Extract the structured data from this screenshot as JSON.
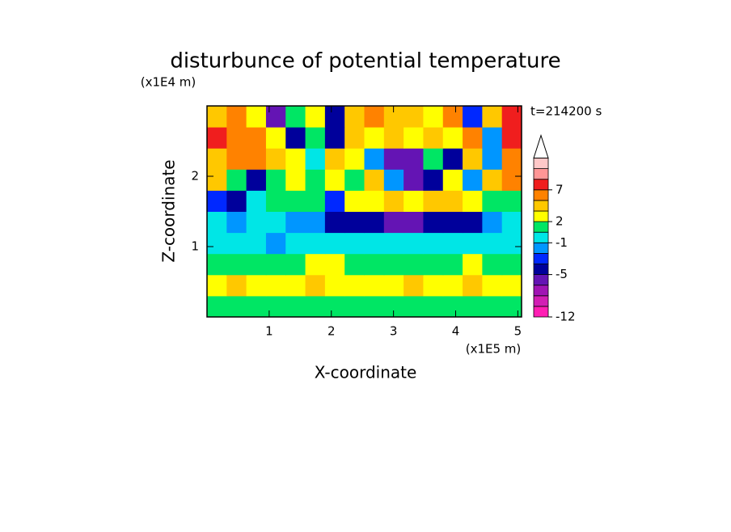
{
  "chart_data": {
    "type": "contour",
    "title": "disturbunce of potential temperature",
    "x_label": "X-coordinate",
    "y_label": "Z-coordinate",
    "x_unit": "(x1E5 m)",
    "y_unit": "(x1E4 m)",
    "annotation": "t=214200 s",
    "xlim": [
      0,
      5.06
    ],
    "ylim": [
      0,
      3
    ],
    "xticks": [
      1,
      2,
      3,
      4,
      5
    ],
    "yticks": [
      1,
      2
    ],
    "field": [
      [
        0,
        1,
        1,
        0,
        1,
        1,
        0,
        1,
        1,
        0,
        0,
        0,
        1,
        1,
        1,
        0
      ],
      [
        2,
        3,
        2,
        2,
        2,
        3,
        2,
        2,
        2,
        2,
        3,
        2,
        2,
        3,
        2,
        2
      ],
      [
        1,
        1,
        1,
        1,
        1,
        2,
        2,
        1,
        1,
        1,
        1,
        1,
        1,
        2,
        1,
        1
      ],
      [
        -1,
        -1,
        -1,
        -2,
        -1,
        -1,
        -1,
        -1,
        -1,
        -1,
        -1,
        -1,
        -1,
        -1,
        -1,
        -1
      ],
      [
        -1,
        -2,
        -1,
        -1,
        -2,
        -2,
        -4,
        -4,
        -5,
        -6,
        -6,
        -5,
        -5,
        -4,
        -2,
        -1
      ],
      [
        -3,
        -4,
        -1,
        0,
        1,
        1,
        -3,
        2,
        2,
        3,
        2,
        3,
        3,
        2,
        1,
        0
      ],
      [
        4,
        1,
        -5,
        1,
        2,
        0,
        2,
        1,
        3,
        -2,
        -6,
        -4,
        2,
        -2,
        4,
        5
      ],
      [
        4,
        5,
        6,
        4,
        2,
        -1,
        4,
        2,
        -2,
        -6,
        -7,
        1,
        -4,
        4,
        -2,
        6
      ],
      [
        8,
        6,
        5,
        2,
        -5,
        1,
        -5,
        3,
        2,
        3,
        2,
        4,
        2,
        5,
        -2,
        8
      ],
      [
        4,
        5,
        2,
        -7,
        1,
        2,
        -4,
        4,
        5,
        4,
        3,
        2,
        5,
        -3,
        4,
        8
      ]
    ],
    "levels": [
      -12,
      -10,
      -8,
      -7,
      -5,
      -3,
      -2,
      -1,
      0,
      2,
      3,
      5,
      7,
      9,
      11,
      13
    ],
    "colors": [
      "#ff1eb4",
      "#d21eb4",
      "#a014b4",
      "#6414b4",
      "#00009b",
      "#0028ff",
      "#0096ff",
      "#00e6e6",
      "#00e664",
      "#ffff00",
      "#ffc800",
      "#ff8200",
      "#f01e1e",
      "#ff9696",
      "#ffc8c8"
    ],
    "colorbar_ticks": [
      -12,
      -5,
      -1,
      2,
      7
    ]
  }
}
